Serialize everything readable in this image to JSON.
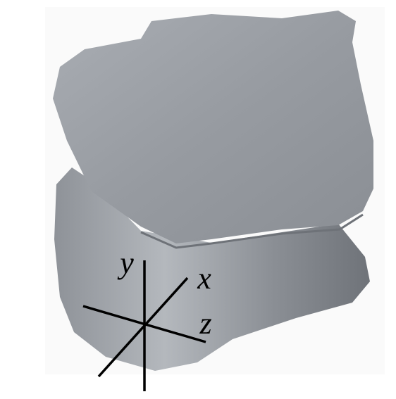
{
  "axes": {
    "y": "y",
    "x": "x",
    "z": "z"
  }
}
